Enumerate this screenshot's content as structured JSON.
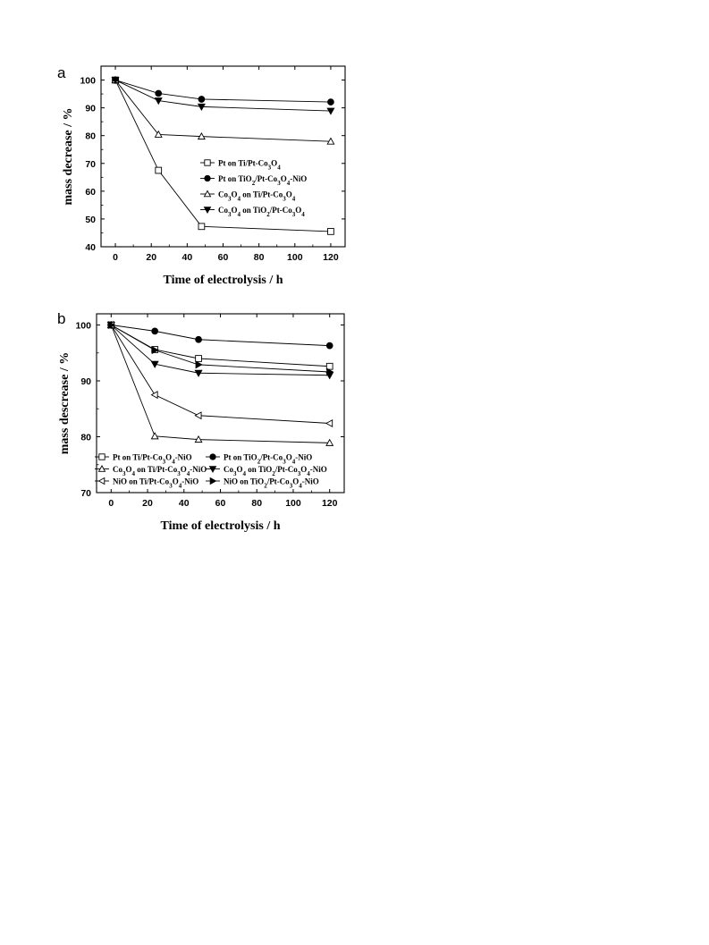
{
  "chart_data": [
    {
      "panel_label": "a",
      "type": "line",
      "xlabel": "Time of electrolysis / h",
      "ylabel": "mass decrease / %",
      "xlim": [
        -8,
        128
      ],
      "ylim": [
        40,
        105
      ],
      "xticks": [
        "0",
        "20",
        "40",
        "60",
        "80",
        "100",
        "120"
      ],
      "xtick_values": [
        0,
        20,
        40,
        60,
        80,
        100,
        120
      ],
      "yticks": [
        "40",
        "50",
        "60",
        "70",
        "80",
        "90",
        "100"
      ],
      "ytick_values": [
        40,
        50,
        60,
        70,
        80,
        90,
        100
      ],
      "grid": false,
      "legend_position": "center-right",
      "x": [
        0,
        24,
        48,
        120
      ],
      "series": [
        {
          "name": "Pt on Ti/Pt-Co3O4",
          "marker": "square-open",
          "values": [
            100,
            67.5,
            47.3,
            45.5
          ]
        },
        {
          "name": "Pt on TiO2/Pt-Co3O4-NiO",
          "marker": "circle-filled",
          "values": [
            100,
            95.2,
            93.1,
            92.1
          ]
        },
        {
          "name": "Co3O4 on Ti/Pt-Co3O4",
          "marker": "triangle-up-open",
          "values": [
            100,
            80.4,
            79.7,
            77.9
          ]
        },
        {
          "name": "Co3O4 on TiO2/Pt-Co3O4",
          "marker": "triangle-down-filled",
          "values": [
            100,
            92.6,
            90.4,
            88.9
          ]
        }
      ]
    },
    {
      "panel_label": "b",
      "type": "line",
      "xlabel": "Time of electrolysis / h",
      "ylabel": "mass descrease / %",
      "xlim": [
        -8,
        128
      ],
      "ylim": [
        70,
        102
      ],
      "xticks": [
        "0",
        "20",
        "40",
        "60",
        "80",
        "100",
        "120"
      ],
      "xtick_values": [
        0,
        20,
        40,
        60,
        80,
        100,
        120
      ],
      "yticks": [
        "70",
        "80",
        "90",
        "100"
      ],
      "ytick_values": [
        70,
        80,
        90,
        100
      ],
      "grid": false,
      "legend_position": "bottom",
      "x": [
        0,
        24,
        48,
        120
      ],
      "series": [
        {
          "name": "Pt on Ti/Pt-Co3O4-NiO",
          "marker": "square-open",
          "values": [
            100,
            95.6,
            94.0,
            92.6
          ]
        },
        {
          "name": "Pt on TiO2/Pt-Co3O4-NiO",
          "marker": "circle-filled",
          "values": [
            100,
            98.9,
            97.4,
            96.3
          ]
        },
        {
          "name": "Co3O4 on Ti/Pt-Co3O4-NiO",
          "marker": "triangle-up-open",
          "values": [
            100,
            80.1,
            79.5,
            78.9
          ]
        },
        {
          "name": "Co3O4 on TiO2/Pt-Co3O4-NiO",
          "marker": "triangle-down-filled",
          "values": [
            100,
            93.0,
            91.4,
            91.0
          ]
        },
        {
          "name": "NiO on Ti/Pt-Co3O4-NiO",
          "marker": "triangle-left-open",
          "values": [
            100,
            87.5,
            83.8,
            82.4
          ]
        },
        {
          "name": "NiO on TiO2/Pt-Co3O4-NiO",
          "marker": "triangle-right-filled",
          "values": [
            100,
            95.5,
            92.9,
            91.6
          ]
        }
      ]
    }
  ]
}
